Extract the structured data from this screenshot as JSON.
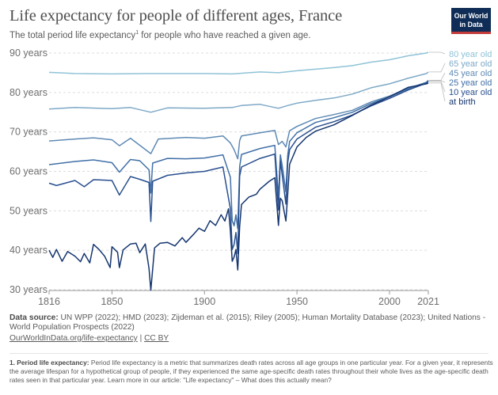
{
  "header": {
    "title": "Life expectancy for people of different ages, France",
    "subtitle": "The total period life expectancy",
    "subtitle_note_marker": "1",
    "subtitle_tail": " for people who have reached a given age.",
    "logo_line1": "Our World",
    "logo_line2": "in Data"
  },
  "colors": {
    "80 year old": "#8fc3d6",
    "65 year old": "#7ea9c7",
    "45 year old": "#5f8ab4",
    "25 year old": "#4170a7",
    "10 year old": "#294f8f",
    "at birth": "#15356f"
  },
  "chart_data": {
    "type": "line",
    "xlim": [
      1816,
      2021
    ],
    "ylim": [
      30,
      90
    ],
    "x_ticks": [
      "1816",
      "1850",
      "1900",
      "1950",
      "2000",
      "2021"
    ],
    "y_ticks": [
      "30 years",
      "40 years",
      "50 years",
      "60 years",
      "70 years",
      "80 years",
      "90 years"
    ],
    "grid": "horizontal dashed",
    "legend": "right, at line ends",
    "series": [
      {
        "name": "80 year old",
        "points": [
          [
            1816,
            85.1
          ],
          [
            1830,
            84.8
          ],
          [
            1850,
            84.7
          ],
          [
            1870,
            84.8
          ],
          [
            1900,
            84.8
          ],
          [
            1915,
            84.7
          ],
          [
            1930,
            85.2
          ],
          [
            1940,
            85.0
          ],
          [
            1950,
            85.5
          ],
          [
            1960,
            85.9
          ],
          [
            1970,
            86.3
          ],
          [
            1980,
            86.8
          ],
          [
            1990,
            87.7
          ],
          [
            2000,
            88.3
          ],
          [
            2010,
            89.3
          ],
          [
            2020,
            90.0
          ],
          [
            2021,
            90.2
          ]
        ]
      },
      {
        "name": "65 year old",
        "points": [
          [
            1816,
            75.8
          ],
          [
            1830,
            76.2
          ],
          [
            1850,
            75.9
          ],
          [
            1860,
            76.2
          ],
          [
            1871,
            75.0
          ],
          [
            1880,
            76.1
          ],
          [
            1900,
            76.0
          ],
          [
            1915,
            76.2
          ],
          [
            1920,
            76.7
          ],
          [
            1930,
            77.0
          ],
          [
            1940,
            76.0
          ],
          [
            1945,
            76.7
          ],
          [
            1950,
            77.3
          ],
          [
            1960,
            78.0
          ],
          [
            1970,
            78.6
          ],
          [
            1980,
            79.6
          ],
          [
            1990,
            81.2
          ],
          [
            2000,
            82.2
          ],
          [
            2010,
            83.6
          ],
          [
            2020,
            84.8
          ],
          [
            2021,
            85.2
          ]
        ]
      },
      {
        "name": "45 year old",
        "points": [
          [
            1816,
            67.7
          ],
          [
            1830,
            68.2
          ],
          [
            1840,
            68.5
          ],
          [
            1850,
            68.0
          ],
          [
            1854,
            66.5
          ],
          [
            1860,
            68.4
          ],
          [
            1871,
            64.5
          ],
          [
            1875,
            68.2
          ],
          [
            1890,
            68.6
          ],
          [
            1900,
            68.4
          ],
          [
            1910,
            69.0
          ],
          [
            1914,
            67.2
          ],
          [
            1916,
            65.5
          ],
          [
            1918,
            63.2
          ],
          [
            1919,
            67.8
          ],
          [
            1920,
            69.0
          ],
          [
            1930,
            69.8
          ],
          [
            1938,
            70.4
          ],
          [
            1940,
            66.8
          ],
          [
            1942,
            67.6
          ],
          [
            1944,
            66.2
          ],
          [
            1946,
            70.3
          ],
          [
            1950,
            71.4
          ],
          [
            1960,
            73.4
          ],
          [
            1970,
            74.4
          ],
          [
            1980,
            75.5
          ],
          [
            1990,
            77.6
          ],
          [
            2000,
            79.1
          ],
          [
            2010,
            81.0
          ],
          [
            2020,
            82.6
          ],
          [
            2021,
            83.1
          ]
        ]
      },
      {
        "name": "25 year old",
        "points": [
          [
            1816,
            61.7
          ],
          [
            1830,
            62.5
          ],
          [
            1840,
            62.9
          ],
          [
            1850,
            62.2
          ],
          [
            1854,
            59.8
          ],
          [
            1860,
            63.0
          ],
          [
            1865,
            62.7
          ],
          [
            1870,
            60.4
          ],
          [
            1871,
            54.5
          ],
          [
            1872,
            62.1
          ],
          [
            1880,
            63.3
          ],
          [
            1890,
            63.2
          ],
          [
            1900,
            63.4
          ],
          [
            1910,
            64.2
          ],
          [
            1914,
            58.5
          ],
          [
            1915,
            47.5
          ],
          [
            1916,
            46.2
          ],
          [
            1917,
            49.0
          ],
          [
            1918,
            45.5
          ],
          [
            1919,
            61.2
          ],
          [
            1920,
            64.3
          ],
          [
            1930,
            65.8
          ],
          [
            1938,
            66.6
          ],
          [
            1940,
            53.4
          ],
          [
            1941,
            64.2
          ],
          [
            1942,
            61.5
          ],
          [
            1944,
            54.8
          ],
          [
            1945,
            64.1
          ],
          [
            1946,
            67.6
          ],
          [
            1950,
            69.8
          ],
          [
            1960,
            72.4
          ],
          [
            1970,
            73.6
          ],
          [
            1980,
            75.0
          ],
          [
            1990,
            77.2
          ],
          [
            2000,
            78.9
          ],
          [
            2010,
            80.9
          ],
          [
            2020,
            82.6
          ],
          [
            2021,
            83.0
          ]
        ]
      },
      {
        "name": "10 year old",
        "points": [
          [
            1816,
            57.0
          ],
          [
            1820,
            56.4
          ],
          [
            1830,
            57.7
          ],
          [
            1835,
            56.1
          ],
          [
            1840,
            57.9
          ],
          [
            1850,
            57.7
          ],
          [
            1854,
            54.0
          ],
          [
            1860,
            58.7
          ],
          [
            1865,
            58.0
          ],
          [
            1870,
            57.2
          ],
          [
            1871,
            47.3
          ],
          [
            1872,
            57.5
          ],
          [
            1880,
            59.0
          ],
          [
            1890,
            59.6
          ],
          [
            1900,
            60.0
          ],
          [
            1910,
            61.1
          ],
          [
            1914,
            50.5
          ],
          [
            1915,
            40.2
          ],
          [
            1916,
            41.5
          ],
          [
            1917,
            44.5
          ],
          [
            1918,
            39.2
          ],
          [
            1919,
            58.8
          ],
          [
            1920,
            61.1
          ],
          [
            1930,
            63.3
          ],
          [
            1938,
            64.4
          ],
          [
            1940,
            50.2
          ],
          [
            1941,
            62.6
          ],
          [
            1942,
            59.2
          ],
          [
            1944,
            51.7
          ],
          [
            1945,
            62.2
          ],
          [
            1946,
            65.5
          ],
          [
            1950,
            68.2
          ],
          [
            1960,
            71.2
          ],
          [
            1970,
            72.6
          ],
          [
            1980,
            74.3
          ],
          [
            1990,
            76.6
          ],
          [
            2000,
            78.5
          ],
          [
            2010,
            80.6
          ],
          [
            2020,
            82.4
          ],
          [
            2021,
            82.8
          ]
        ]
      },
      {
        "name": "at birth",
        "points": [
          [
            1816,
            40.0
          ],
          [
            1818,
            38.2
          ],
          [
            1820,
            40.2
          ],
          [
            1823,
            37.2
          ],
          [
            1826,
            39.7
          ],
          [
            1830,
            38.5
          ],
          [
            1833,
            37.1
          ],
          [
            1835,
            39.2
          ],
          [
            1838,
            36.8
          ],
          [
            1840,
            41.5
          ],
          [
            1843,
            40.2
          ],
          [
            1846,
            38.5
          ],
          [
            1849,
            35.6
          ],
          [
            1850,
            40.9
          ],
          [
            1853,
            39.5
          ],
          [
            1854,
            35.6
          ],
          [
            1856,
            40.1
          ],
          [
            1860,
            41.6
          ],
          [
            1863,
            41.8
          ],
          [
            1865,
            39.4
          ],
          [
            1868,
            41.6
          ],
          [
            1870,
            35.4
          ],
          [
            1871,
            29.9
          ],
          [
            1873,
            40.6
          ],
          [
            1876,
            41.8
          ],
          [
            1880,
            42.0
          ],
          [
            1884,
            41.1
          ],
          [
            1888,
            43.2
          ],
          [
            1890,
            42.0
          ],
          [
            1894,
            44.0
          ],
          [
            1897,
            45.6
          ],
          [
            1900,
            44.8
          ],
          [
            1903,
            47.5
          ],
          [
            1906,
            46.3
          ],
          [
            1909,
            49.0
          ],
          [
            1911,
            47.4
          ],
          [
            1913,
            50.5
          ],
          [
            1914,
            44.9
          ],
          [
            1915,
            37.2
          ],
          [
            1916,
            38.3
          ],
          [
            1917,
            40.2
          ],
          [
            1918,
            35.0
          ],
          [
            1919,
            46.0
          ],
          [
            1920,
            51.6
          ],
          [
            1924,
            53.5
          ],
          [
            1928,
            54.2
          ],
          [
            1930,
            55.5
          ],
          [
            1935,
            57.5
          ],
          [
            1938,
            58.4
          ],
          [
            1940,
            46.3
          ],
          [
            1941,
            53.2
          ],
          [
            1942,
            52.6
          ],
          [
            1944,
            47.4
          ],
          [
            1945,
            54.2
          ],
          [
            1946,
            61.8
          ],
          [
            1950,
            66.2
          ],
          [
            1955,
            68.6
          ],
          [
            1960,
            70.2
          ],
          [
            1970,
            71.8
          ],
          [
            1980,
            74.2
          ],
          [
            1990,
            76.8
          ],
          [
            2000,
            78.9
          ],
          [
            2010,
            81.3
          ],
          [
            2020,
            82.2
          ],
          [
            2021,
            82.4
          ]
        ]
      }
    ]
  },
  "source": {
    "label": "Data source:",
    "text": " UN WPP (2022); HMD (2023); Zijdeman et al. (2015); Riley (2005); Human Mortality Database (2023); United Nations - World Population Prospects (2022)",
    "link": "OurWorldInData.org/life-expectancy",
    "sep": " | ",
    "license": "CC BY"
  },
  "footnote": {
    "label": "1. Period life expectancy:",
    "text": " Period life expectancy is a metric that summarizes death rates across all age groups in one particular year. For a given year, it represents the average lifespan for a hypothetical group of people, if they experienced the same age-specific death rates throughout their whole lives as the age-specific death rates seen in that particular year. Learn more in our article: \"Life expectancy\" – What does this actually mean?"
  }
}
